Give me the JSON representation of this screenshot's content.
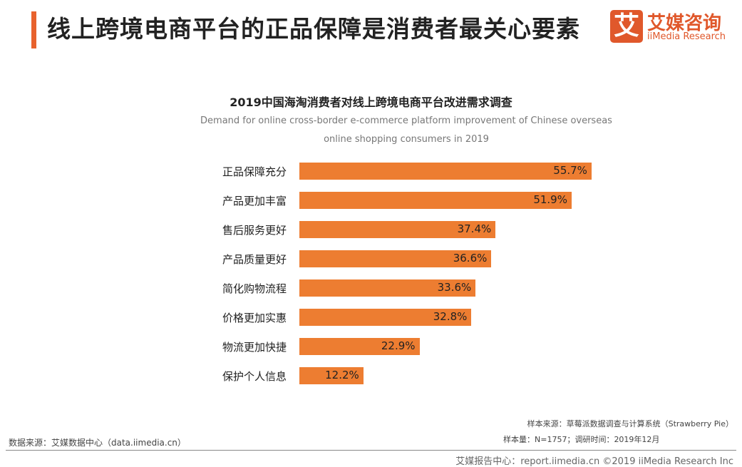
{
  "header": {
    "title": "线上跨境电商平台的正品保障是消费者最关心要素",
    "logo_mark": "艾",
    "logo_cn": "艾媒咨询",
    "logo_en": "iiMedia Research"
  },
  "chart_data": {
    "type": "bar",
    "orientation": "horizontal",
    "title": "2019中国海淘消费者对线上跨境电商平台改进需求调查",
    "subtitle": "Demand for online cross-border e-commerce platform improvement of Chinese overseas online shopping consumers in 2019",
    "categories": [
      "正品保障充分",
      "产品更加丰富",
      "售后服务更好",
      "产品质量更好",
      "简化购物流程",
      "价格更加实惠",
      "物流更加快捷",
      "保护个人信息"
    ],
    "values": [
      55.7,
      51.9,
      37.4,
      36.6,
      33.6,
      32.8,
      22.9,
      12.2
    ],
    "value_labels": [
      "55.7%",
      "51.9%",
      "37.4%",
      "36.6%",
      "33.6%",
      "32.8%",
      "22.9%",
      "12.2%"
    ],
    "color": "#ed7d31"
  },
  "footer": {
    "sample_source": "样本来源：草莓派数据调查与计算系统（Strawberry Pie）",
    "sample_size": "样本量：N=1757；调研时间：2019年12月",
    "data_source": "数据来源：艾媒数据中心（data.iimedia.cn）",
    "report": "艾媒报告中心：report.iimedia.cn  ©2019  iiMedia Research  Inc"
  }
}
